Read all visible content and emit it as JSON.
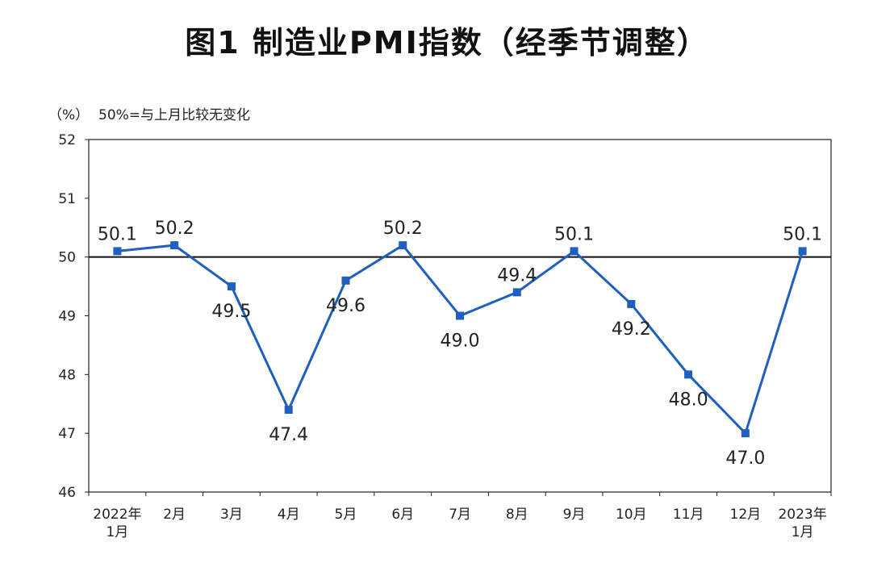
{
  "chart_data": {
    "type": "line",
    "title": "图1 制造业PMI指数（经季节调整）",
    "unit_label": "（%）",
    "note": "50%=与上月比较无变化",
    "categories": [
      [
        "2022年",
        "1月"
      ],
      [
        "2月"
      ],
      [
        "3月"
      ],
      [
        "4月"
      ],
      [
        "5月"
      ],
      [
        "6月"
      ],
      [
        "7月"
      ],
      [
        "8月"
      ],
      [
        "9月"
      ],
      [
        "10月"
      ],
      [
        "11月"
      ],
      [
        "12月"
      ],
      [
        "2023年",
        "1月"
      ]
    ],
    "series": [
      {
        "values": [
          50.1,
          50.2,
          49.5,
          47.4,
          49.6,
          50.2,
          49.0,
          49.4,
          50.1,
          49.2,
          48.0,
          47.0,
          50.1
        ],
        "data_labels": [
          "50.1",
          "50.2",
          "49.5",
          "47.4",
          "49.6",
          "50.2",
          "49.0",
          "49.4",
          "50.1",
          "49.2",
          "48.0",
          "47.0",
          "50.1"
        ],
        "color": "#1f5fbf"
      }
    ],
    "ylim": [
      46,
      52
    ],
    "yticks": [
      46,
      47,
      48,
      49,
      50,
      51,
      52
    ],
    "reference_line": 50,
    "grid": false,
    "legend": "none",
    "label_position": [
      "above",
      "above",
      "below",
      "below",
      "below",
      "above",
      "below",
      "above",
      "above",
      "below",
      "below",
      "below",
      "above"
    ]
  }
}
